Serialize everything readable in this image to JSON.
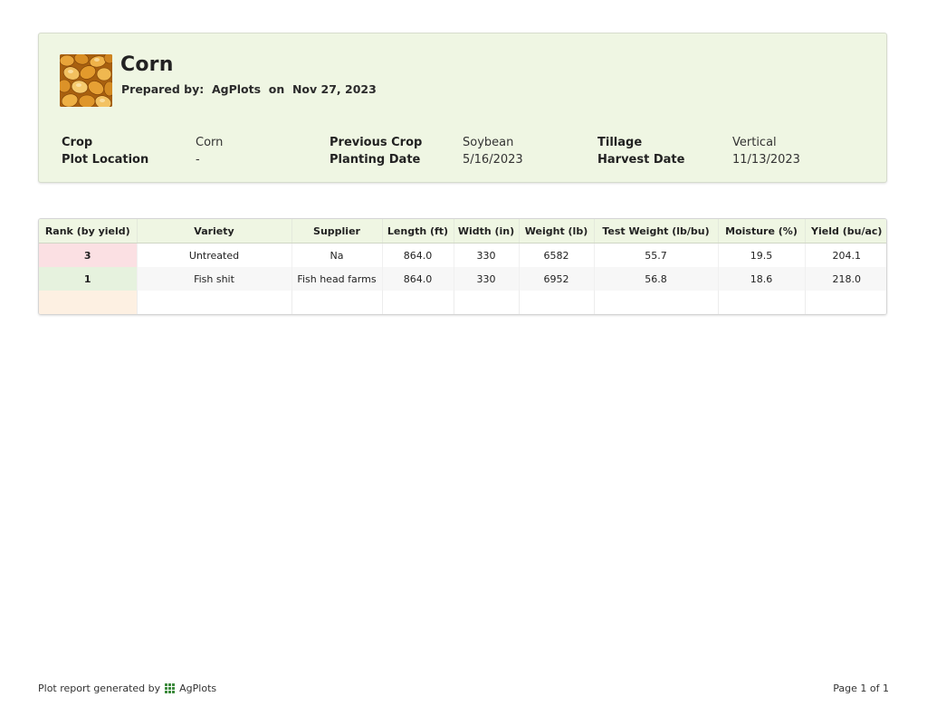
{
  "report": {
    "title": "Corn",
    "prepared_label": "Prepared by:",
    "prepared_by": "AgPlots",
    "on_label": "on",
    "date": "Nov 27, 2023",
    "image_icon": "corn-kernels-photo"
  },
  "info": {
    "row1": [
      {
        "label": "Crop",
        "value": "Corn"
      },
      {
        "label": "Previous Crop",
        "value": "Soybean"
      },
      {
        "label": "Tillage",
        "value": "Vertical"
      }
    ],
    "row2": [
      {
        "label": "Plot Location",
        "value": "-"
      },
      {
        "label": "Planting Date",
        "value": "5/16/2023"
      },
      {
        "label": "Harvest Date",
        "value": "11/13/2023"
      }
    ]
  },
  "table": {
    "headers": [
      "Rank (by yield)",
      "Variety",
      "Supplier",
      "Length (ft)",
      "Width (in)",
      "Weight (lb)",
      "Test Weight (lb/bu)",
      "Moisture (%)",
      "Yield (bu/ac)"
    ],
    "rows": [
      [
        "3",
        "Untreated",
        "Na",
        "864.0",
        "330",
        "6582",
        "55.7",
        "19.5",
        "204.1"
      ],
      [
        "1",
        "Fish shit",
        "Fish head farms",
        "864.0",
        "330",
        "6952",
        "56.8",
        "18.6",
        "218.0"
      ]
    ],
    "rank_colors": {
      "low": "#fbe0e3",
      "high": "#e6f2de",
      "empty": "#fdf0e2"
    }
  },
  "footer": {
    "generated_label": "Plot report generated by",
    "brand": "AgPlots",
    "brand_icon": "grid-icon",
    "page": "Page 1 of 1"
  },
  "colors": {
    "header_bg": "#eff6e3",
    "brand_green": "#3c8a3c"
  }
}
